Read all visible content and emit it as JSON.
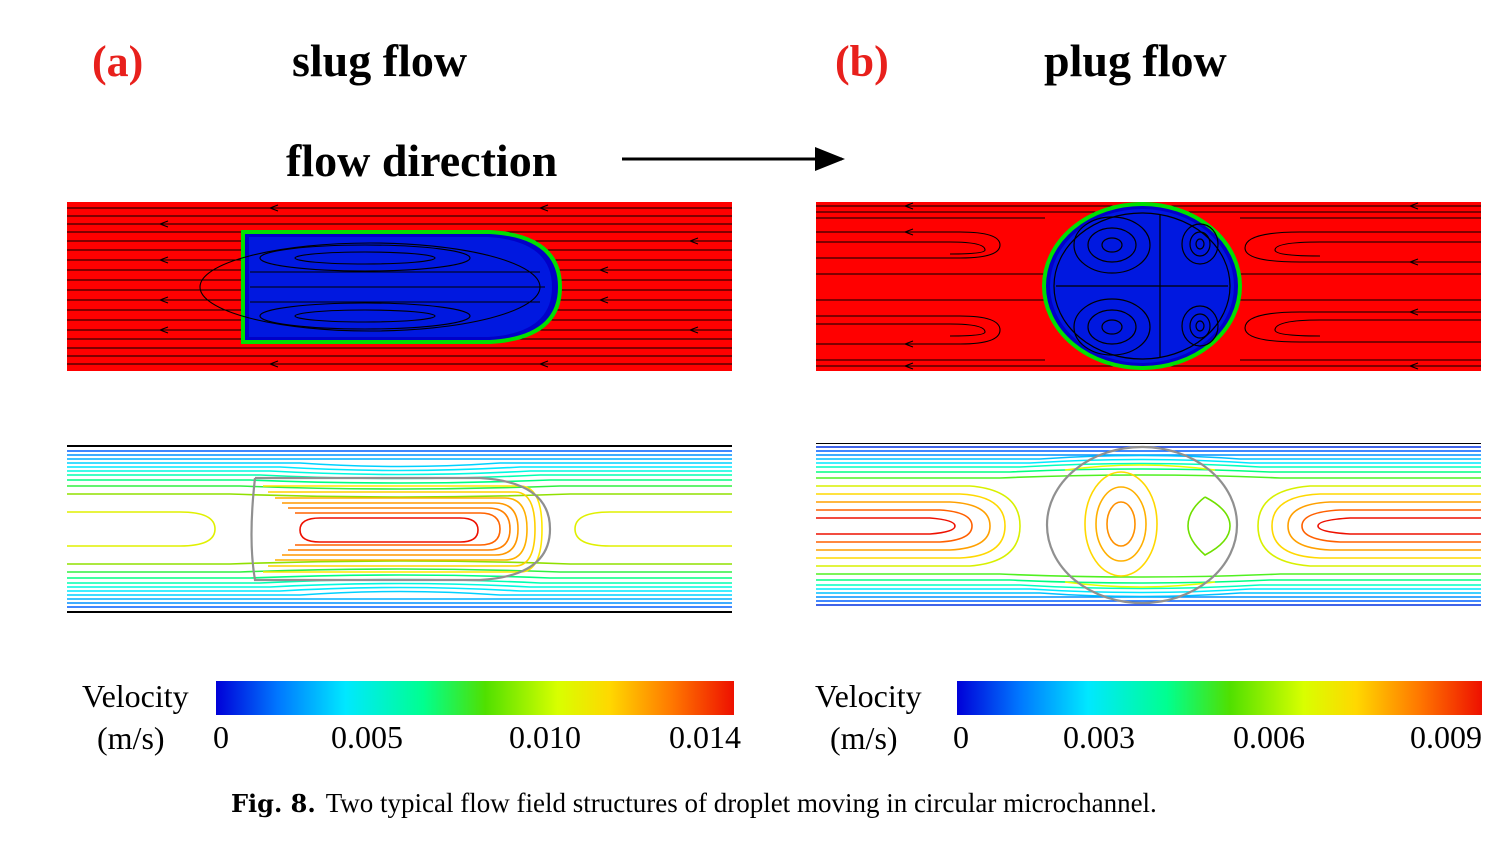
{
  "panels": [
    {
      "letter": "(a)",
      "title": "slug flow"
    },
    {
      "letter": "(b)",
      "title": "plug flow"
    }
  ],
  "flow_direction_label": "flow direction",
  "colorbars": [
    {
      "title": "Velocity",
      "unit": "(m/s)",
      "ticks": [
        "0",
        "0.005",
        "0.010",
        "0.014"
      ],
      "min": 0,
      "max": 0.014
    },
    {
      "title": "Velocity",
      "unit": "(m/s)",
      "ticks": [
        "0",
        "0.003",
        "0.006",
        "0.009"
      ],
      "min": 0,
      "max": 0.009
    }
  ],
  "caption": {
    "label": "Fig. 8.",
    "text": "Two typical flow field structures of droplet moving in circular microchannel."
  },
  "colors": {
    "label_red": "#e8201c",
    "continuous_phase": "#ff0000",
    "droplet_phase": "#0018e0",
    "colormap": [
      "#0000d8",
      "#0078ff",
      "#00e8ff",
      "#00ff90",
      "#50e000",
      "#d8ff00",
      "#ffd800",
      "#ff7800",
      "#ee1000"
    ]
  }
}
